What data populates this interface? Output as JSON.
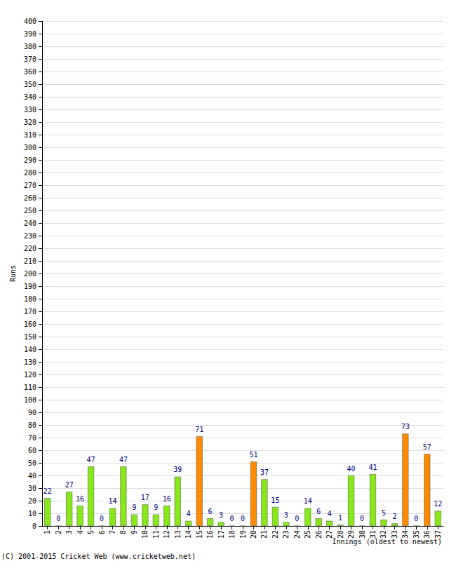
{
  "chart_data": {
    "type": "bar",
    "x_label": "Innings (oldest to newest)",
    "y_label": "Runs",
    "annotations": [
      "(C) 2001-2015 Cricket Web (www.cricketweb.net)"
    ],
    "categories": [
      "1",
      "2",
      "3",
      "4",
      "5",
      "6",
      "7",
      "8",
      "9",
      "10",
      "11",
      "12",
      "13",
      "14",
      "15",
      "16",
      "17",
      "18",
      "19",
      "20",
      "21",
      "22",
      "23",
      "24",
      "25",
      "26",
      "27",
      "28",
      "29",
      "30",
      "31",
      "32",
      "33",
      "34",
      "35",
      "36",
      "37"
    ],
    "values": [
      22,
      0,
      27,
      16,
      47,
      0,
      14,
      47,
      9,
      17,
      9,
      16,
      39,
      4,
      71,
      6,
      3,
      0,
      0,
      51,
      37,
      15,
      3,
      0,
      14,
      6,
      4,
      1,
      40,
      0,
      41,
      5,
      2,
      73,
      0,
      57,
      12
    ],
    "colors": [
      "#88e818",
      "#88e818",
      "#88e818",
      "#88e818",
      "#88e818",
      "#88e818",
      "#88e818",
      "#88e818",
      "#88e818",
      "#88e818",
      "#88e818",
      "#88e818",
      "#88e818",
      "#88e818",
      "#ff8c00",
      "#88e818",
      "#88e818",
      "#88e818",
      "#88e818",
      "#ff8c00",
      "#88e818",
      "#88e818",
      "#88e818",
      "#88e818",
      "#88e818",
      "#88e818",
      "#88e818",
      "#88e818",
      "#88e818",
      "#88e818",
      "#88e818",
      "#88e818",
      "#88e818",
      "#ff8c00",
      "#88e818",
      "#ff8c00",
      "#88e818"
    ],
    "ylim": [
      0,
      400
    ],
    "yticks": [
      0,
      10,
      20,
      30,
      40,
      50,
      60,
      70,
      80,
      90,
      100,
      110,
      120,
      130,
      140,
      150,
      160,
      170,
      180,
      190,
      200,
      210,
      220,
      230,
      240,
      250,
      260,
      270,
      280,
      290,
      300,
      310,
      320,
      330,
      340,
      350,
      360,
      370,
      380,
      390,
      400
    ],
    "grid": true,
    "data_labels": true
  }
}
